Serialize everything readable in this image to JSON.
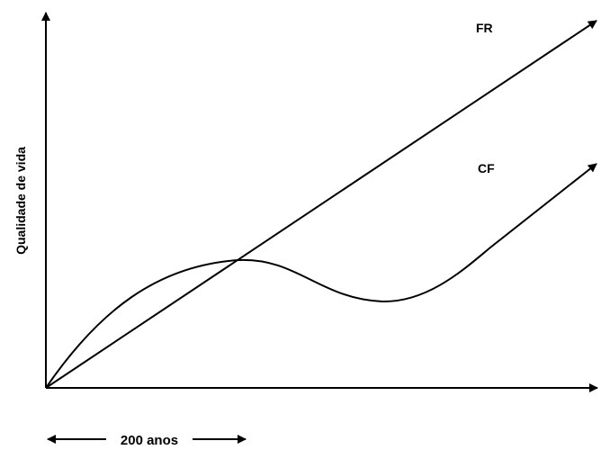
{
  "diagram": {
    "y_axis_label": "Qualidade de vida",
    "line_label_fr": "FR",
    "line_label_cf": "CF",
    "time_span_label": "200 anos"
  },
  "colors": {
    "ink": "#000000",
    "background": "#ffffff"
  }
}
